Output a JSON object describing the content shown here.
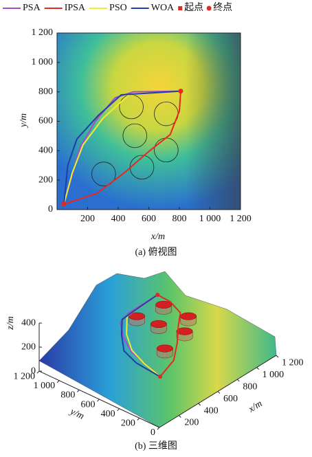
{
  "chart_data": [
    {
      "type": "line",
      "xlim": [
        0,
        1200
      ],
      "ylim": [
        0,
        1200
      ],
      "xticks": [
        200,
        400,
        600,
        800,
        {
          "value": 1000,
          "label": "1 000"
        },
        {
          "value": 1200,
          "label": "1 200"
        }
      ],
      "yticks": [
        0,
        200,
        400,
        600,
        800,
        {
          "value": 1000,
          "label": "1 000"
        },
        {
          "value": 1200,
          "label": "1 200"
        }
      ],
      "xlabel": "x/m",
      "ylabel": "y/m",
      "caption": "(a) 俯视图",
      "series": [
        {
          "name": "PSA",
          "color": "#a64ac9",
          "x": [
            45,
            90,
            150,
            250,
            380,
            500,
            809
          ],
          "y": [
            37,
            200,
            420,
            600,
            760,
            800,
            805
          ]
        },
        {
          "name": "IPSA",
          "color": "#e8271f",
          "x": [
            45,
            260,
            440,
            600,
            740,
            800,
            809
          ],
          "y": [
            37,
            110,
            250,
            395,
            510,
            670,
            805
          ]
        },
        {
          "name": "PSO",
          "color": "#f2ec2e",
          "x": [
            45,
            100,
            170,
            300,
            470,
            809
          ],
          "y": [
            37,
            250,
            440,
            620,
            780,
            805
          ]
        },
        {
          "name": "WOA",
          "color": "#1f3fa8",
          "x": [
            45,
            70,
            130,
            270,
            420,
            809
          ],
          "y": [
            37,
            300,
            480,
            640,
            780,
            805
          ]
        }
      ],
      "markers": [
        {
          "name": "起点",
          "shape": "square",
          "color": "#e8271f",
          "x": 45,
          "y": 37
        },
        {
          "name": "终点",
          "shape": "circle",
          "color": "#e8271f",
          "x": 809,
          "y": 805
        }
      ],
      "obstacles": {
        "x": [
          486,
          714,
          509,
          714,
          555,
          305
        ],
        "y": [
          698,
          651,
          502,
          405,
          288,
          242
        ],
        "r": [
          78,
          78,
          78,
          78,
          78,
          78
        ]
      }
    },
    {
      "type": "surface",
      "xlim": [
        0,
        1200
      ],
      "ylim": [
        0,
        1200
      ],
      "zlim": [
        0,
        400
      ],
      "xticks": [
        200,
        400,
        600,
        800,
        {
          "value": 1000,
          "label": "1 000"
        },
        {
          "value": 1200,
          "label": "1 200"
        }
      ],
      "yticks": [
        0,
        200,
        400,
        600,
        800,
        {
          "value": 1000,
          "label": "1 000"
        },
        {
          "value": 1200,
          "label": "1 200"
        }
      ],
      "zticks": [
        0,
        200,
        400
      ],
      "xlabel": "x/m",
      "ylabel": "y/m",
      "zlabel": "z/m",
      "caption": "(b) 三维图"
    }
  ]
}
